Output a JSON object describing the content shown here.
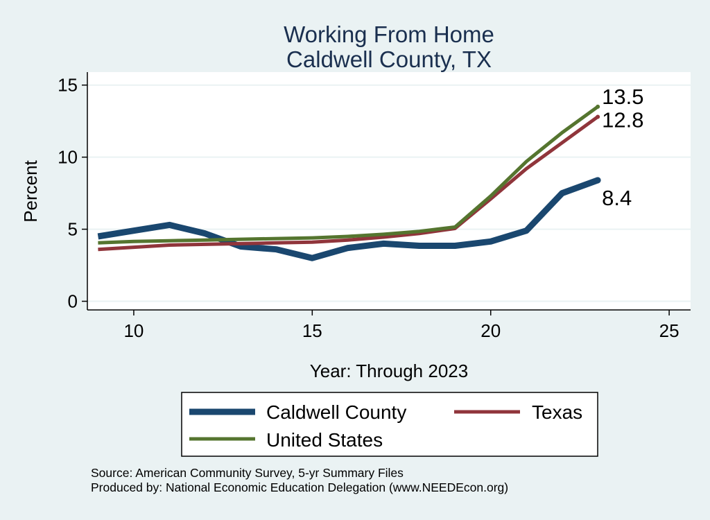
{
  "chart_data": {
    "type": "line",
    "title": [
      "Working From Home",
      "Caldwell County, TX"
    ],
    "xlabel": "Year: Through 2023",
    "ylabel": "Percent",
    "xlim": [
      8.7,
      25.6
    ],
    "ylim": [
      -0.6,
      15.9
    ],
    "xticks": [
      10,
      15,
      20,
      25
    ],
    "yticks": [
      0,
      5,
      10,
      15
    ],
    "grid": "horizontal",
    "legend_position": "bottom",
    "x": [
      9,
      10,
      11,
      12,
      13,
      14,
      15,
      16,
      17,
      18,
      19,
      20,
      21,
      22,
      23
    ],
    "series": [
      {
        "name": "Caldwell County",
        "color": "#1a476f",
        "values": [
          4.5,
          4.9,
          5.3,
          4.7,
          3.8,
          3.6,
          3.0,
          3.7,
          4.0,
          3.85,
          3.85,
          4.15,
          4.9,
          7.5,
          8.4
        ],
        "end_label": "8.4"
      },
      {
        "name": "Texas",
        "color": "#90353b",
        "values": [
          3.6,
          3.75,
          3.9,
          3.95,
          4.0,
          4.05,
          4.1,
          4.25,
          4.45,
          4.7,
          5.05,
          7.1,
          9.2,
          11.0,
          12.8
        ],
        "end_label": "12.8"
      },
      {
        "name": "United States",
        "color": "#55752f",
        "values": [
          4.05,
          4.15,
          4.2,
          4.25,
          4.3,
          4.35,
          4.4,
          4.5,
          4.65,
          4.85,
          5.15,
          7.3,
          9.7,
          11.7,
          13.5
        ],
        "end_label": "13.5"
      }
    ],
    "notes": [
      "Source: American Community Survey, 5-yr Summary Files",
      "Produced by: National Economic Education Delegation (www.NEEDEcon.org)"
    ]
  }
}
